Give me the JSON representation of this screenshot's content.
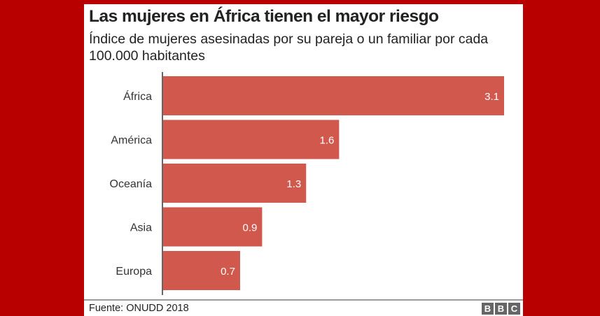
{
  "header": {
    "title": "Las mujeres en África tienen el mayor riesgo",
    "subtitle": "Índice de mujeres asesinadas por su pareja o un familiar por cada 100.000 habitantes"
  },
  "footer": {
    "source": "Fuente: ONUDD 2018",
    "logo_letters": [
      "B",
      "B",
      "C"
    ]
  },
  "colors": {
    "bar": "#d0584d",
    "background": "#b80000",
    "axis": "#333333"
  },
  "chart_data": {
    "type": "bar",
    "orientation": "horizontal",
    "title": "Las mujeres en África tienen el mayor riesgo",
    "subtitle": "Índice de mujeres asesinadas por su pareja o un familiar por cada 100.000 habitantes",
    "categories": [
      "África",
      "América",
      "Oceanía",
      "Asia",
      "Europa"
    ],
    "values": [
      3.1,
      1.6,
      1.3,
      0.9,
      0.7
    ],
    "data_labels": [
      "3.1",
      "1.6",
      "1.3",
      "0.9",
      "0.7"
    ],
    "xlabel": "",
    "ylabel": "",
    "xlim": [
      0,
      3.1
    ],
    "grid": false,
    "legend": "none",
    "source": "Fuente: ONUDD 2018"
  }
}
